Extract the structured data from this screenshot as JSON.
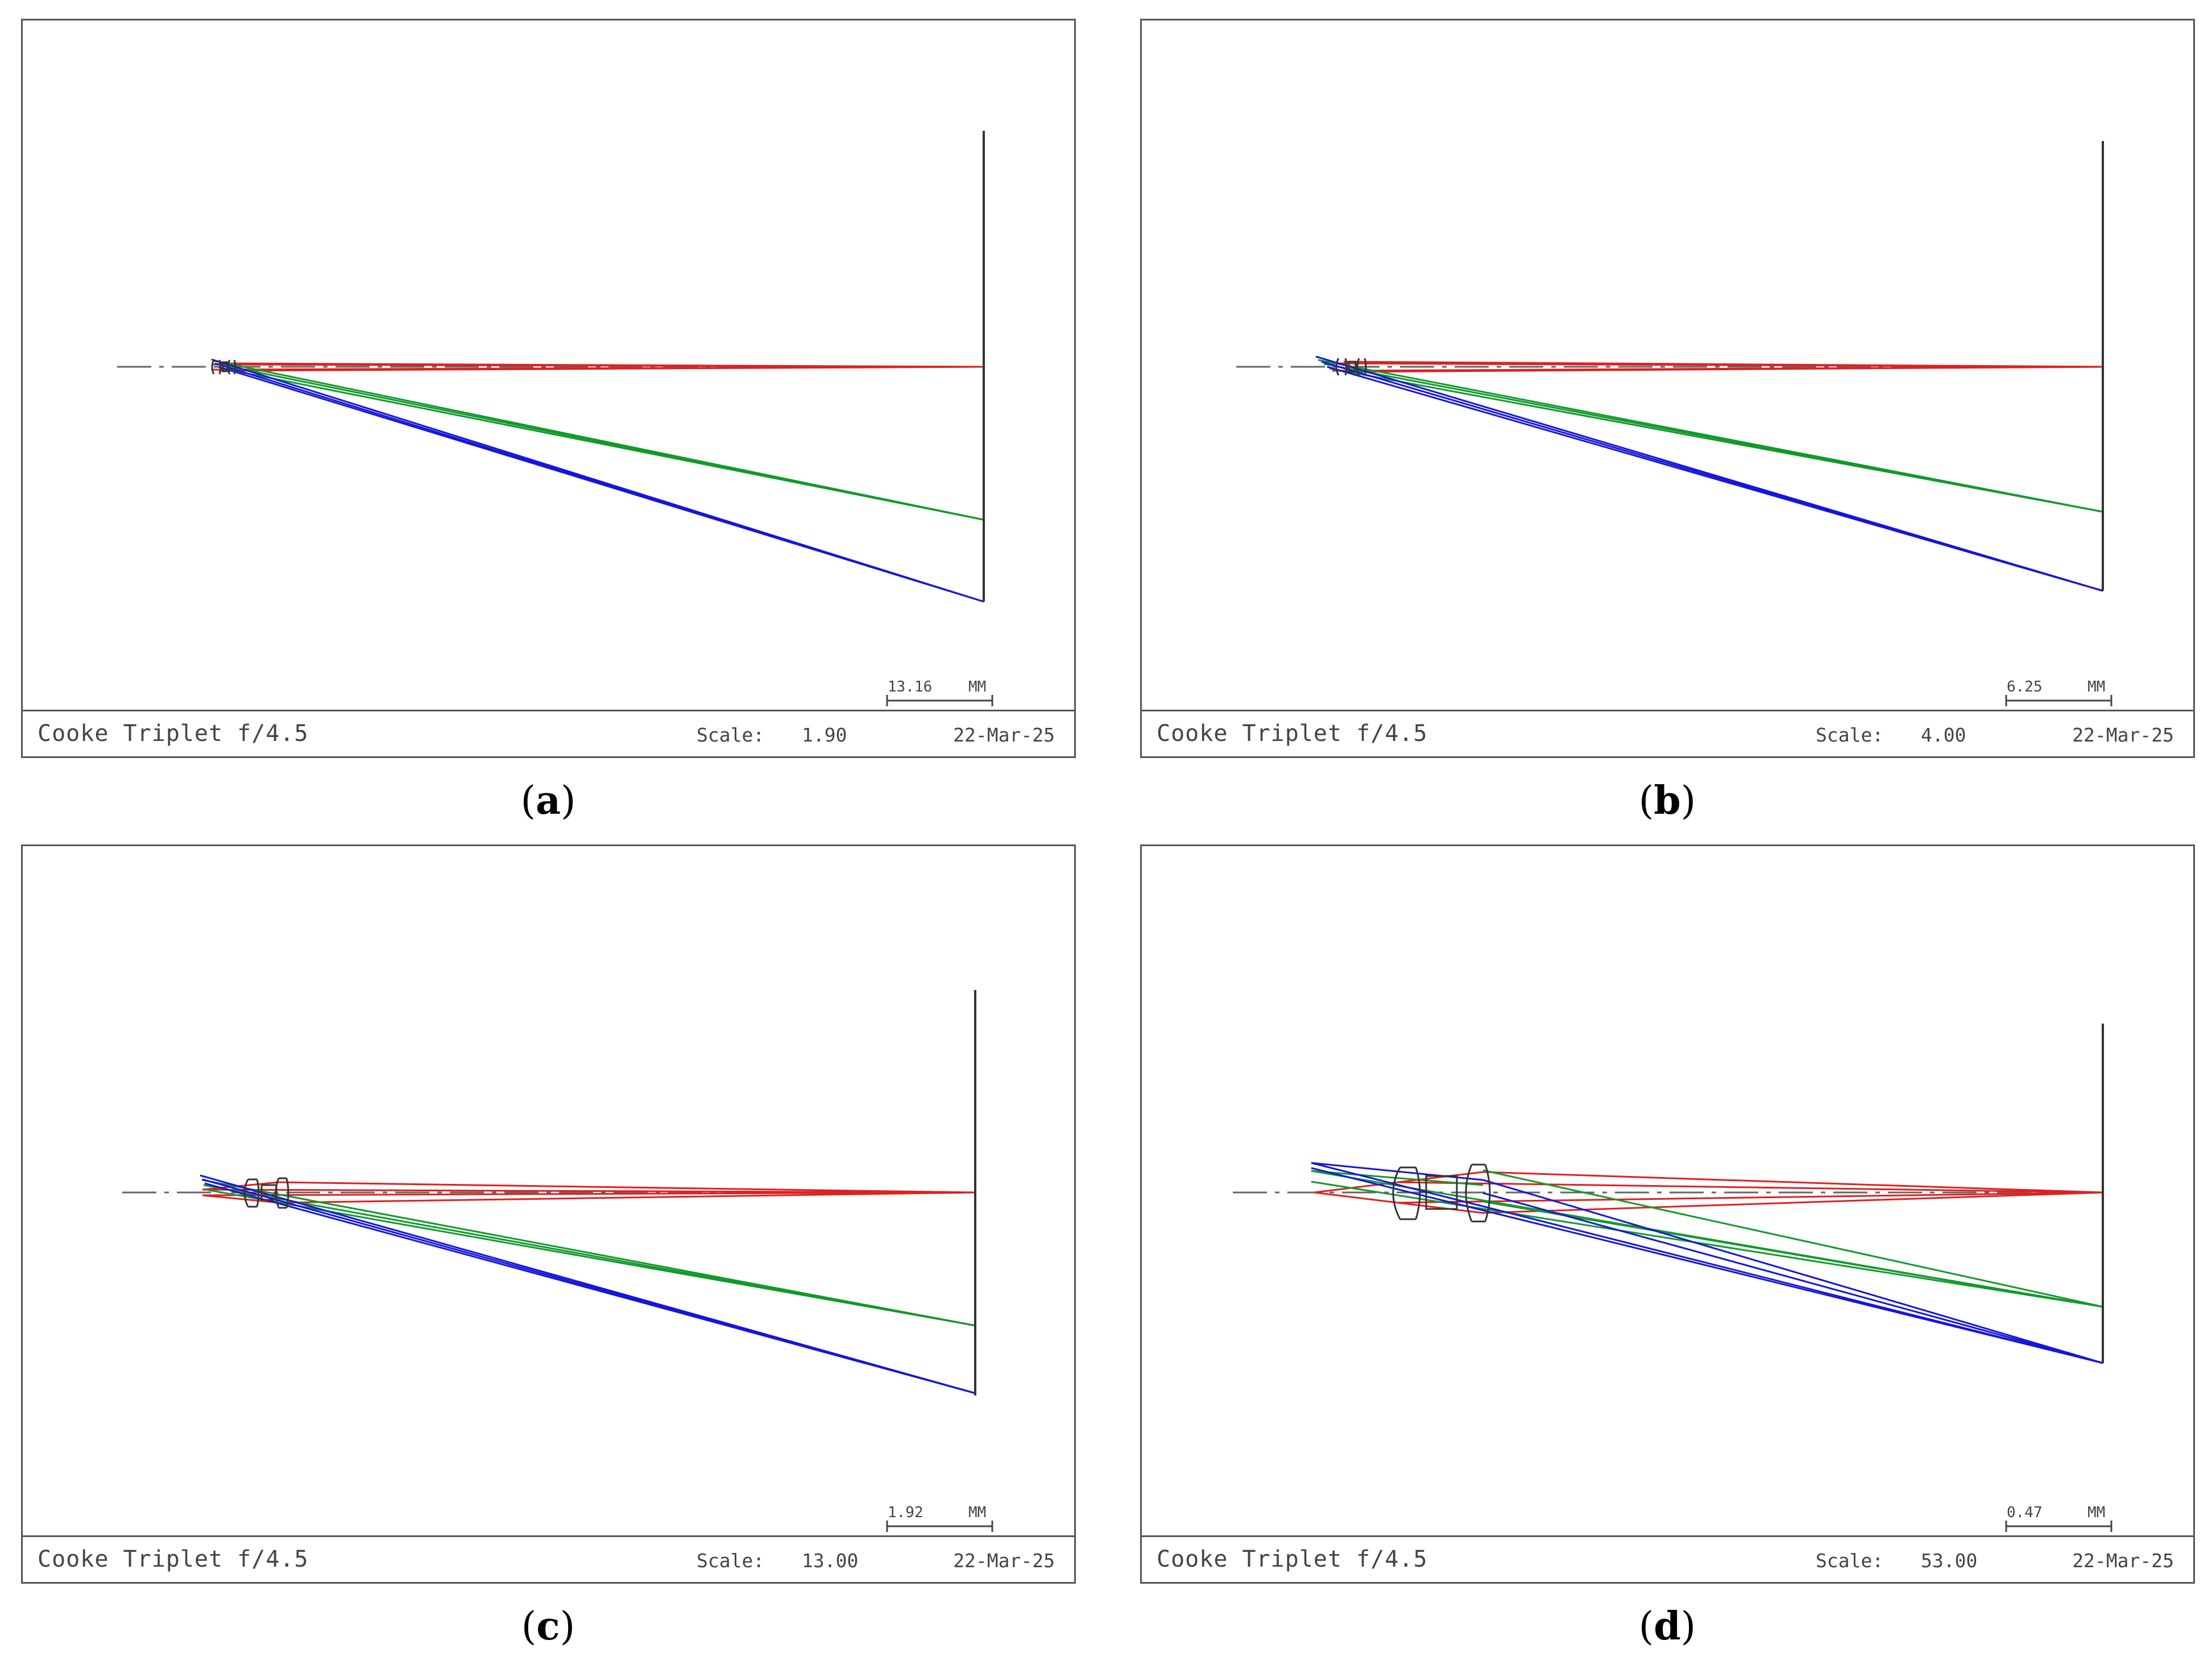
{
  "panels": [
    {
      "id": "a",
      "title": "Cooke Triplet f/4.5",
      "scale_label": "Scale:",
      "scale_value": "1.90",
      "date": "22-Mar-25",
      "scale_bar_value": "13.16",
      "scale_bar_unit": "MM",
      "caption_open": "(",
      "caption_letter": "a",
      "caption_close": ")"
    },
    {
      "id": "b",
      "title": "Cooke Triplet f/4.5",
      "scale_label": "Scale:",
      "scale_value": "4.00",
      "date": "22-Mar-25",
      "scale_bar_value": "6.25",
      "scale_bar_unit": "MM",
      "caption_open": "(",
      "caption_letter": "b",
      "caption_close": ")"
    },
    {
      "id": "c",
      "title": "Cooke Triplet f/4.5",
      "scale_label": "Scale:",
      "scale_value": "13.00",
      "date": "22-Mar-25",
      "scale_bar_value": "1.92",
      "scale_bar_unit": "MM",
      "caption_open": "(",
      "caption_letter": "c",
      "caption_close": ")"
    },
    {
      "id": "d",
      "title": "Cooke Triplet f/4.5",
      "scale_label": "Scale:",
      "scale_value": "53.00",
      "date": "22-Mar-25",
      "scale_bar_value": "0.47",
      "scale_bar_unit": "MM",
      "caption_open": "(",
      "caption_letter": "d",
      "caption_close": ")"
    }
  ],
  "colors": {
    "axis_field": "#e02020",
    "mid_field": "#119a2a",
    "edge_field": "#1515dd",
    "lens": "#333333",
    "frame": "#555555"
  }
}
